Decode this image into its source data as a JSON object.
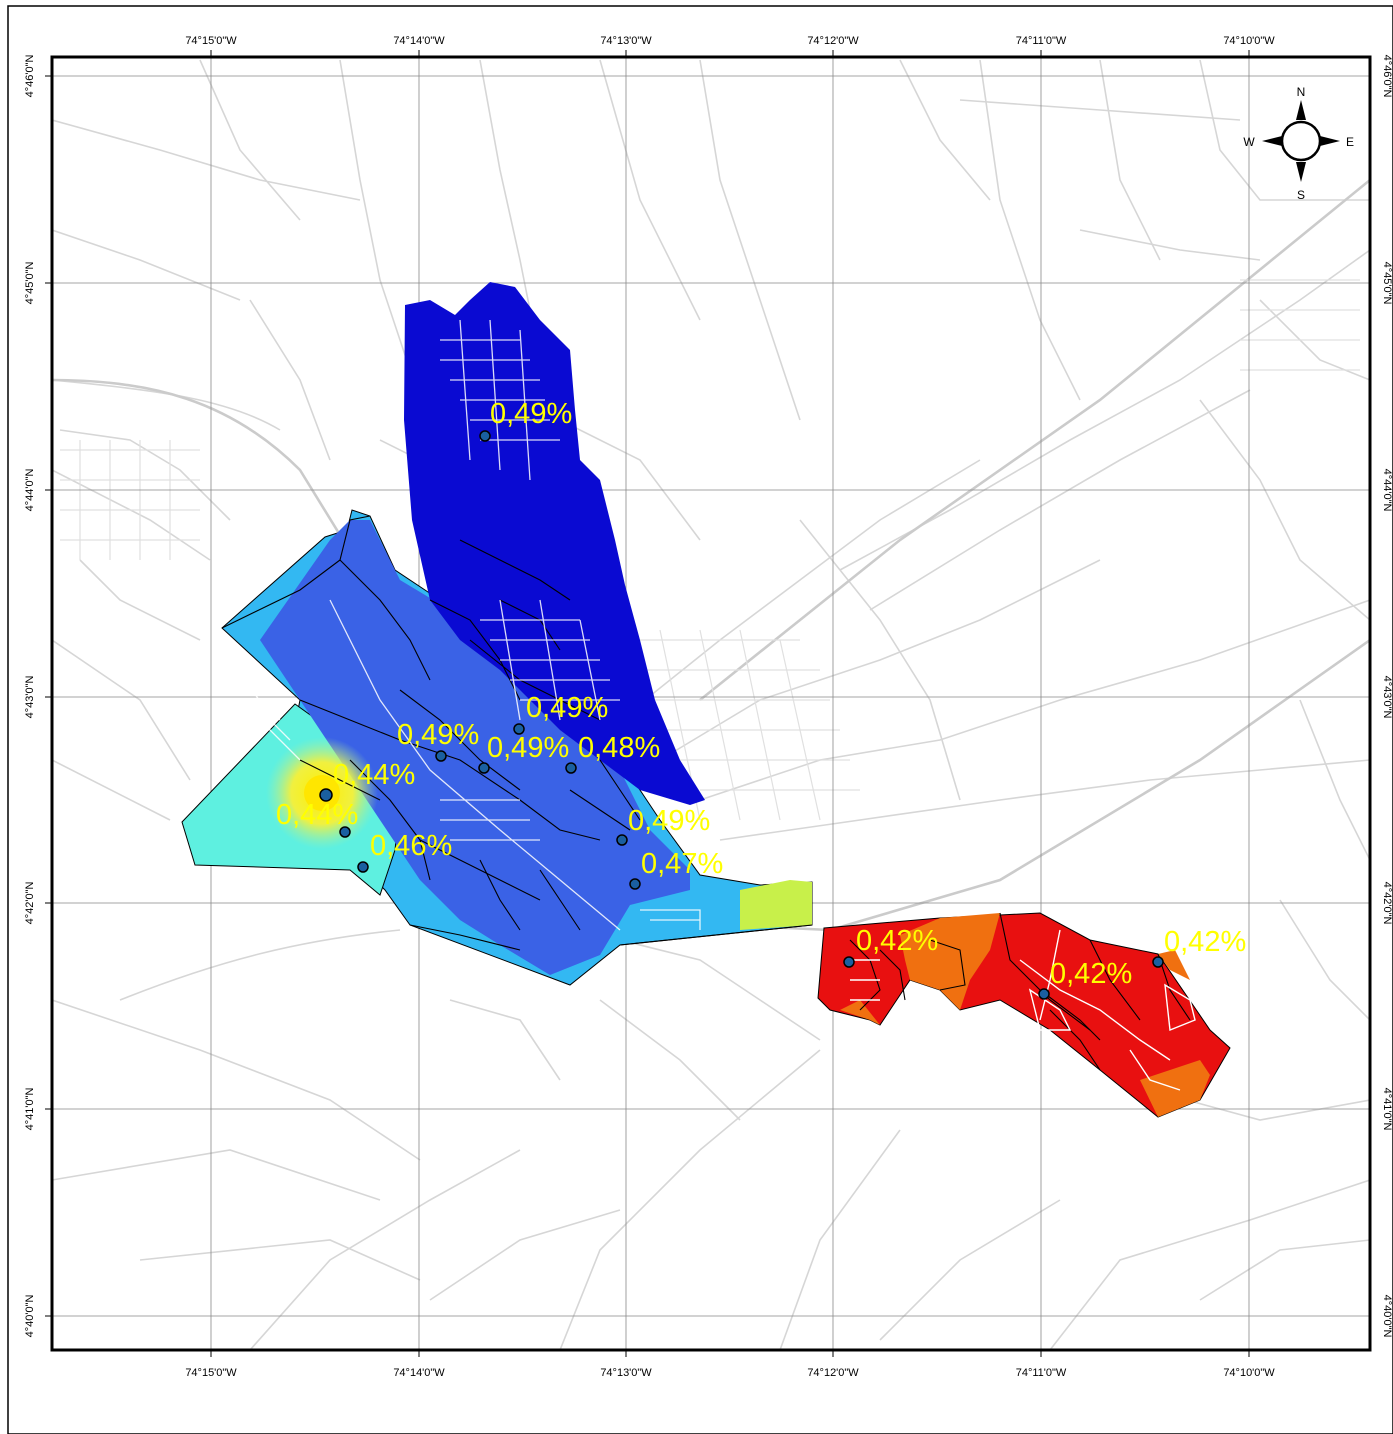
{
  "map": {
    "lon_labels": [
      "74°15'0\"W",
      "74°14'0\"W",
      "74°13'0\"W",
      "74°12'0\"W",
      "74°11'0\"W",
      "74°10'0\"W"
    ],
    "lat_labels": [
      "4°46'0\"N",
      "4°45'0\"N",
      "4°44'0\"N",
      "4°43'0\"N",
      "4°42'0\"N",
      "4°41'0\"N",
      "4°40'0\"N"
    ],
    "compass": {
      "north": "N",
      "south": "S",
      "east": "E",
      "west": "W"
    },
    "sample_labels": [
      "0,49%",
      "0,49%",
      "0,49%",
      "0,48%",
      "0,49%",
      "0,44%",
      "0,44%",
      "0,46%",
      "0,49%",
      "0,47%",
      "0,42%",
      "0,42%",
      "0,42%"
    ],
    "colors": {
      "deep_blue": "#0a0ad2",
      "mid_blue": "#3a62e6",
      "light_blue": "#33b8f2",
      "cyan": "#5ef0e0",
      "yellow": "#fff020",
      "red": "#e81010",
      "orange": "#f07010",
      "label_yellow": "#ffff00",
      "roads": "#d4d4d4"
    }
  }
}
